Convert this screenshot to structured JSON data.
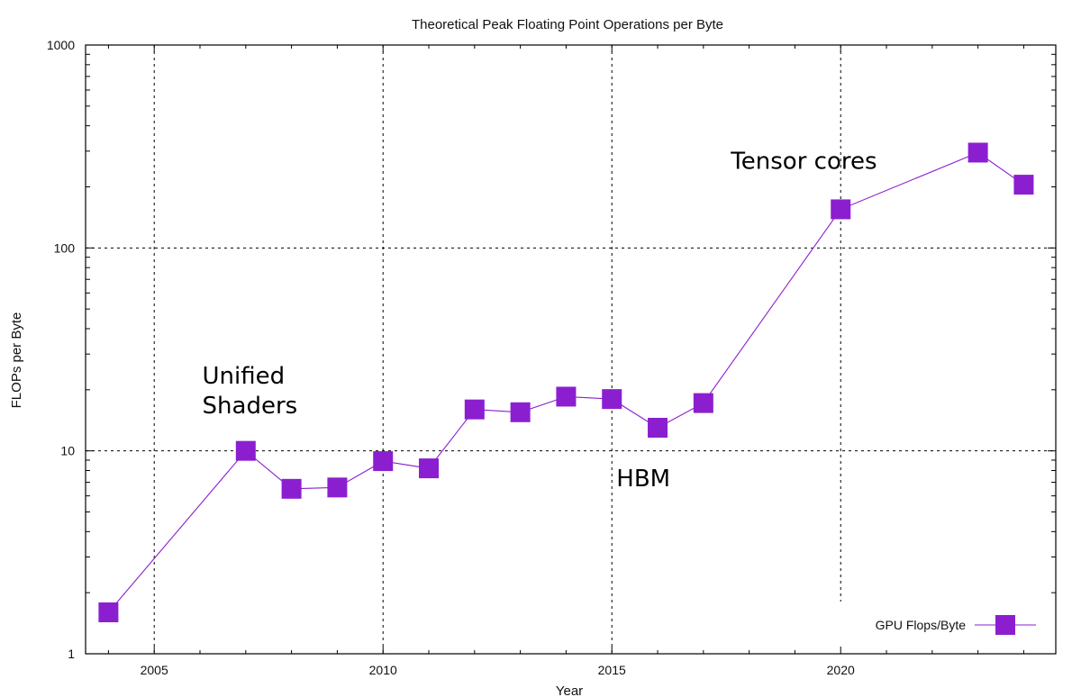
{
  "chart_data": {
    "type": "line",
    "title": "Theoretical Peak Floating Point Operations per Byte",
    "xlabel": "Year",
    "ylabel": "FLOPs per Byte",
    "xlim": [
      2003.5,
      2024.7
    ],
    "ylim": [
      1,
      1000
    ],
    "yscale": "log",
    "grid": true,
    "legend_position": "bottom-right",
    "x_ticks": [
      2005,
      2010,
      2015,
      2020
    ],
    "y_ticks": [
      1,
      10,
      100,
      1000
    ],
    "x_tick_labels": [
      "2005",
      "2010",
      "2015",
      "2020"
    ],
    "y_tick_labels": [
      "1",
      "10",
      "100",
      "1000"
    ],
    "series": [
      {
        "name": "GPU Flops/Byte",
        "color": "#8b1fd0",
        "marker": "square",
        "x": [
          2004,
          2007,
          2008,
          2009,
          2010,
          2011,
          2012,
          2013,
          2014,
          2015,
          2016,
          2017,
          2020,
          2023,
          2024
        ],
        "y": [
          1.6,
          10,
          6.5,
          6.6,
          8.9,
          8.2,
          16,
          15.5,
          18.5,
          18,
          13,
          17.2,
          155,
          295,
          205
        ]
      }
    ],
    "annotations": [
      {
        "lines": [
          "Unified",
          "Shaders"
        ],
        "x": 2006.05,
        "y": 21.5
      },
      {
        "lines": [
          "HBM"
        ],
        "x": 2015.1,
        "y": 6.7
      },
      {
        "lines": [
          "Tensor cores"
        ],
        "x": 2017.6,
        "y": 245
      }
    ]
  }
}
